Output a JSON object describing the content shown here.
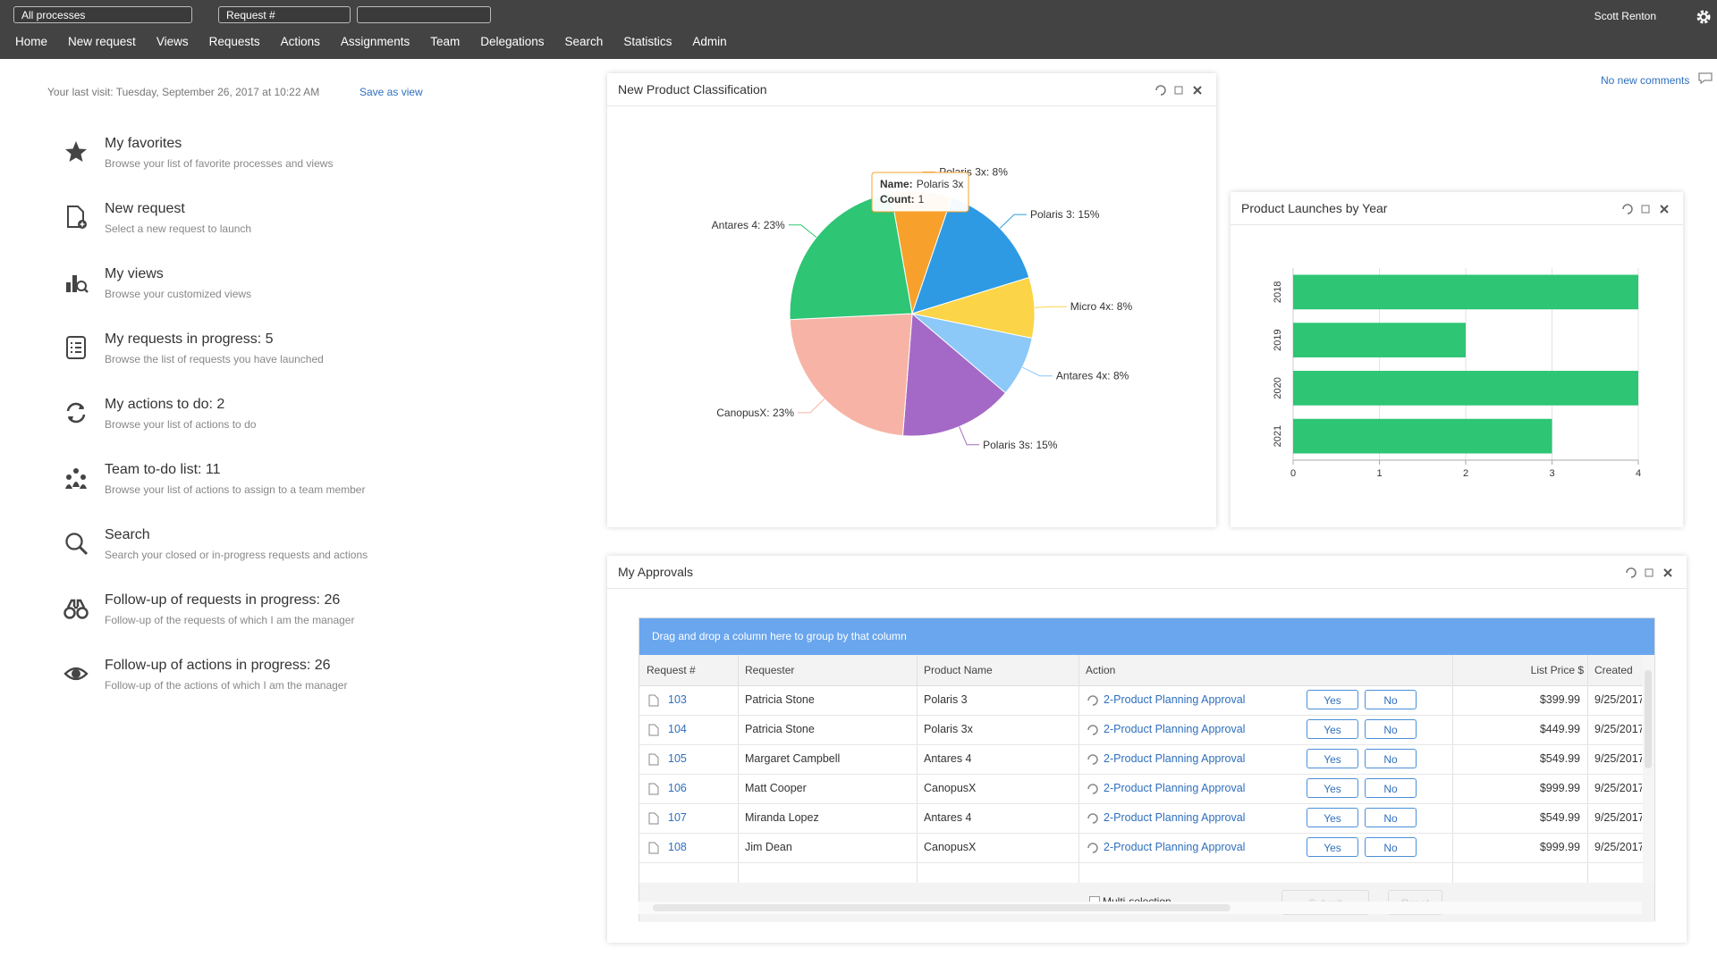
{
  "header": {
    "selects": [
      "All processes",
      "Request #"
    ],
    "user": "Scott Renton",
    "nav": [
      "Home",
      "New request",
      "Views",
      "Requests",
      "Actions",
      "Assignments",
      "Team",
      "Delegations",
      "Search",
      "Statistics",
      "Admin"
    ]
  },
  "last_visit": "Your last visit: Tuesday, September 26, 2017 at 10:22 AM",
  "save_view": "Save as view",
  "comments": "No new comments",
  "menu": [
    {
      "title": "My favorites",
      "desc": "Browse your list of favorite processes and views"
    },
    {
      "title": "New request",
      "desc": "Select a new request to launch"
    },
    {
      "title": "My views",
      "desc": "Browse your customized views"
    },
    {
      "title": "My requests in progress: 5",
      "desc": "Browse the list of requests you have launched"
    },
    {
      "title": "My actions to do: 2",
      "desc": "Browse your list of actions to do"
    },
    {
      "title": "Team to-do list: 11",
      "desc": "Browse your list of actions to assign to a team member"
    },
    {
      "title": "Search",
      "desc": "Search your closed or in-progress requests and actions"
    },
    {
      "title": "Follow-up of requests in progress: 26",
      "desc": "Follow-up of the requests of which I am the manager"
    },
    {
      "title": "Follow-up of actions in progress: 26",
      "desc": "Follow-up of the actions of which I am the manager"
    }
  ],
  "pie_widget": {
    "tooltip": {
      "name_label": "Name:",
      "name": "Polaris 3x",
      "count_label": "Count:",
      "count": 1
    },
    "chart_data": {
      "type": "pie",
      "title": "New Product Classification",
      "values": [
        8,
        15,
        8,
        8,
        15,
        23,
        23
      ],
      "value_labels": [
        "Polaris 3x: 8%",
        "Polaris 3: 15%",
        "Micro 4x: 8%",
        "Antares 4x: 8%",
        "Polaris 3s: 15%",
        "CanopusX: 23%",
        "Antares 4: 23%"
      ],
      "colors": [
        "#f7a12c",
        "#2d9ae3",
        "#fbd448",
        "#8cc8f8",
        "#a469c6",
        "#f7b3a5",
        "#2ec574"
      ]
    }
  },
  "bar_widget": {
    "chart_data": {
      "type": "bar",
      "orientation": "horizontal",
      "title": "Product Launches by Year",
      "categories": [
        "2018",
        "2019",
        "2020",
        "2021"
      ],
      "values": [
        4,
        2,
        4,
        3
      ],
      "color": "#2ec574",
      "xlim": [
        0,
        4
      ],
      "xticks": [
        0,
        1,
        2,
        3,
        4
      ],
      "grid": true
    }
  },
  "approvals": {
    "title": "My Approvals",
    "group_hint": "Drag and drop a column here to group by that column",
    "columns": [
      "Request #",
      "Requester",
      "Product Name",
      "Action",
      "List Price $",
      "Created"
    ],
    "rows": [
      [
        "103",
        "Patricia Stone",
        "Polaris 3",
        "2-Product Planning Approval",
        "$399.99",
        "9/25/2017"
      ],
      [
        "104",
        "Patricia Stone",
        "Polaris 3x",
        "2-Product Planning Approval",
        "$449.99",
        "9/25/2017"
      ],
      [
        "105",
        "Margaret Campbell",
        "Antares 4",
        "2-Product Planning Approval",
        "$549.99",
        "9/25/2017"
      ],
      [
        "106",
        "Matt Cooper",
        "CanopusX",
        "2-Product Planning Approval",
        "$999.99",
        "9/25/2017"
      ],
      [
        "107",
        "Miranda Lopez",
        "Antares 4",
        "2-Product Planning Approval",
        "$549.99",
        "9/25/2017"
      ],
      [
        "108",
        "Jim Dean",
        "CanopusX",
        "2-Product Planning Approval",
        "$999.99",
        "9/25/2017"
      ]
    ],
    "buttons": [
      "Yes",
      "No"
    ],
    "multi": "Multi-selection",
    "submit": "Submit",
    "reset": "Reset"
  }
}
